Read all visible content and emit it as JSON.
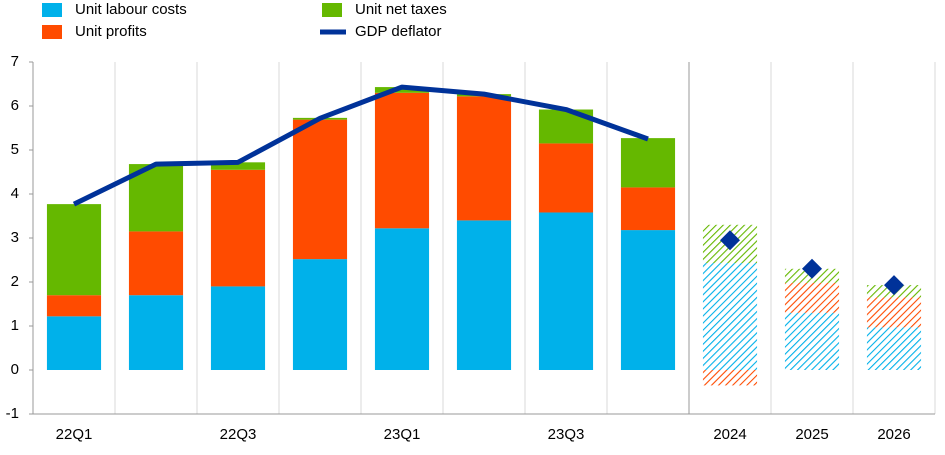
{
  "chart_data": {
    "type": "stacked-bar-line",
    "categories": [
      "22Q1",
      null,
      "22Q3",
      null,
      "23Q1",
      null,
      "23Q3",
      null,
      "2024",
      "2025",
      "2026"
    ],
    "projected": [
      false,
      false,
      false,
      false,
      false,
      false,
      false,
      false,
      true,
      true,
      true
    ],
    "series": [
      {
        "name": "Unit labour costs",
        "color": "#00b1ea",
        "kind": "bar",
        "values": [
          1.22,
          1.7,
          1.9,
          2.52,
          3.22,
          3.4,
          3.58,
          3.18,
          2.43,
          1.3,
          0.97
        ]
      },
      {
        "name": "Unit profits",
        "color": "#ff4b00",
        "kind": "bar",
        "values": [
          0.48,
          1.45,
          2.65,
          3.17,
          3.08,
          2.82,
          1.57,
          0.97,
          -0.35,
          0.68,
          0.68
        ]
      },
      {
        "name": "Unit net taxes",
        "color": "#65b800",
        "kind": "bar",
        "values": [
          2.07,
          1.53,
          0.17,
          0.04,
          0.13,
          0.05,
          0.77,
          1.12,
          0.87,
          0.32,
          0.28
        ]
      },
      {
        "name": "GDP deflator",
        "color": "#003299",
        "kind": "line",
        "values": [
          3.77,
          4.68,
          4.72,
          5.72,
          6.43,
          6.27,
          5.92,
          5.25,
          2.95,
          2.3,
          1.93
        ]
      }
    ],
    "ylim": [
      -1,
      7
    ],
    "yticks": [
      -1,
      0,
      1,
      2,
      3,
      4,
      5,
      6,
      7
    ],
    "legend": "top-left"
  }
}
